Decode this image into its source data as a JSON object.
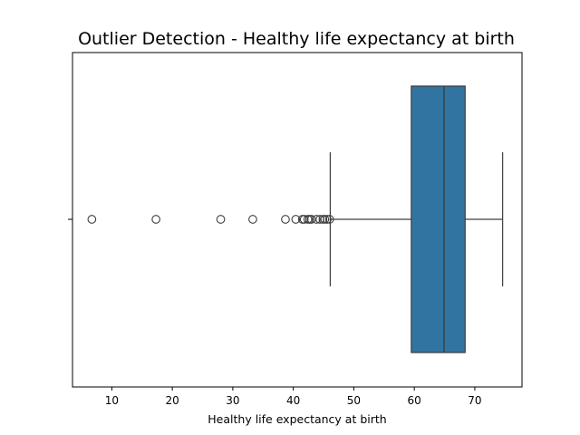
{
  "chart_data": {
    "type": "boxplot",
    "orientation": "horizontal",
    "title": "Outlier Detection - Healthy life expectancy at birth",
    "xlabel": "Healthy life expectancy at birth",
    "ylabel": "",
    "xlim": [
      3.5,
      77.8
    ],
    "xticks": [
      10,
      20,
      30,
      40,
      50,
      60,
      70
    ],
    "grid": false,
    "box": {
      "whisker_low": 46.1,
      "q1": 59.5,
      "median": 64.9,
      "q3": 68.4,
      "whisker_high": 74.6,
      "color": "#3274a1"
    },
    "outliers": [
      6.7,
      17.3,
      28.0,
      33.3,
      38.7,
      40.4,
      41.5,
      41.8,
      42.4,
      42.7,
      43.0,
      43.8,
      44.4,
      44.9,
      45.2,
      45.6,
      46.0
    ]
  }
}
